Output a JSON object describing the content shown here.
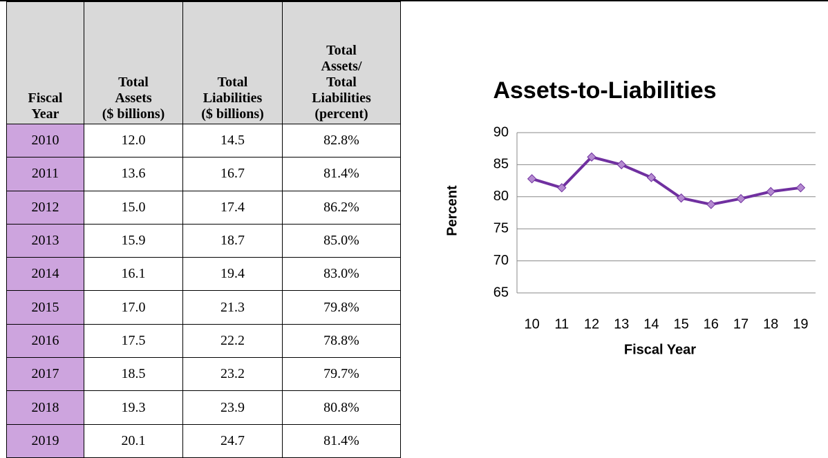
{
  "table": {
    "header": [
      "Fiscal\nYear",
      "Total\nAssets\n($ billions)",
      "Total\nLiabilities\n($ billions)",
      "Total\nAssets/\nTotal\nLiabilities\n(percent)"
    ],
    "rows": [
      [
        "2010",
        "12.0",
        "14.5",
        "82.8%"
      ],
      [
        "2011",
        "13.6",
        "16.7",
        "81.4%"
      ],
      [
        "2012",
        "15.0",
        "17.4",
        "86.2%"
      ],
      [
        "2013",
        "15.9",
        "18.7",
        "85.0%"
      ],
      [
        "2014",
        "16.1",
        "19.4",
        "83.0%"
      ],
      [
        "2015",
        "17.0",
        "21.3",
        "79.8%"
      ],
      [
        "2016",
        "17.5",
        "22.2",
        "78.8%"
      ],
      [
        "2017",
        "18.5",
        "23.2",
        "79.7%"
      ],
      [
        "2018",
        "19.3",
        "23.9",
        "80.8%"
      ],
      [
        "2019",
        "20.1",
        "24.7",
        "81.4%"
      ]
    ]
  },
  "chart_data": {
    "type": "line",
    "title": "Assets-to-Liabilities",
    "x_label": "Fiscal Year",
    "y_label": "Percent",
    "categories": [
      "10",
      "11",
      "12",
      "13",
      "14",
      "15",
      "16",
      "17",
      "18",
      "19"
    ],
    "values": [
      82.8,
      81.4,
      86.2,
      85.0,
      83.0,
      79.8,
      78.8,
      79.7,
      80.8,
      81.4
    ],
    "color": "#7030a0",
    "marker_color": "#b48ad0",
    "ylim": [
      65,
      90
    ],
    "yticks": [
      65,
      70,
      75,
      80,
      85,
      90
    ],
    "grid": true
  }
}
